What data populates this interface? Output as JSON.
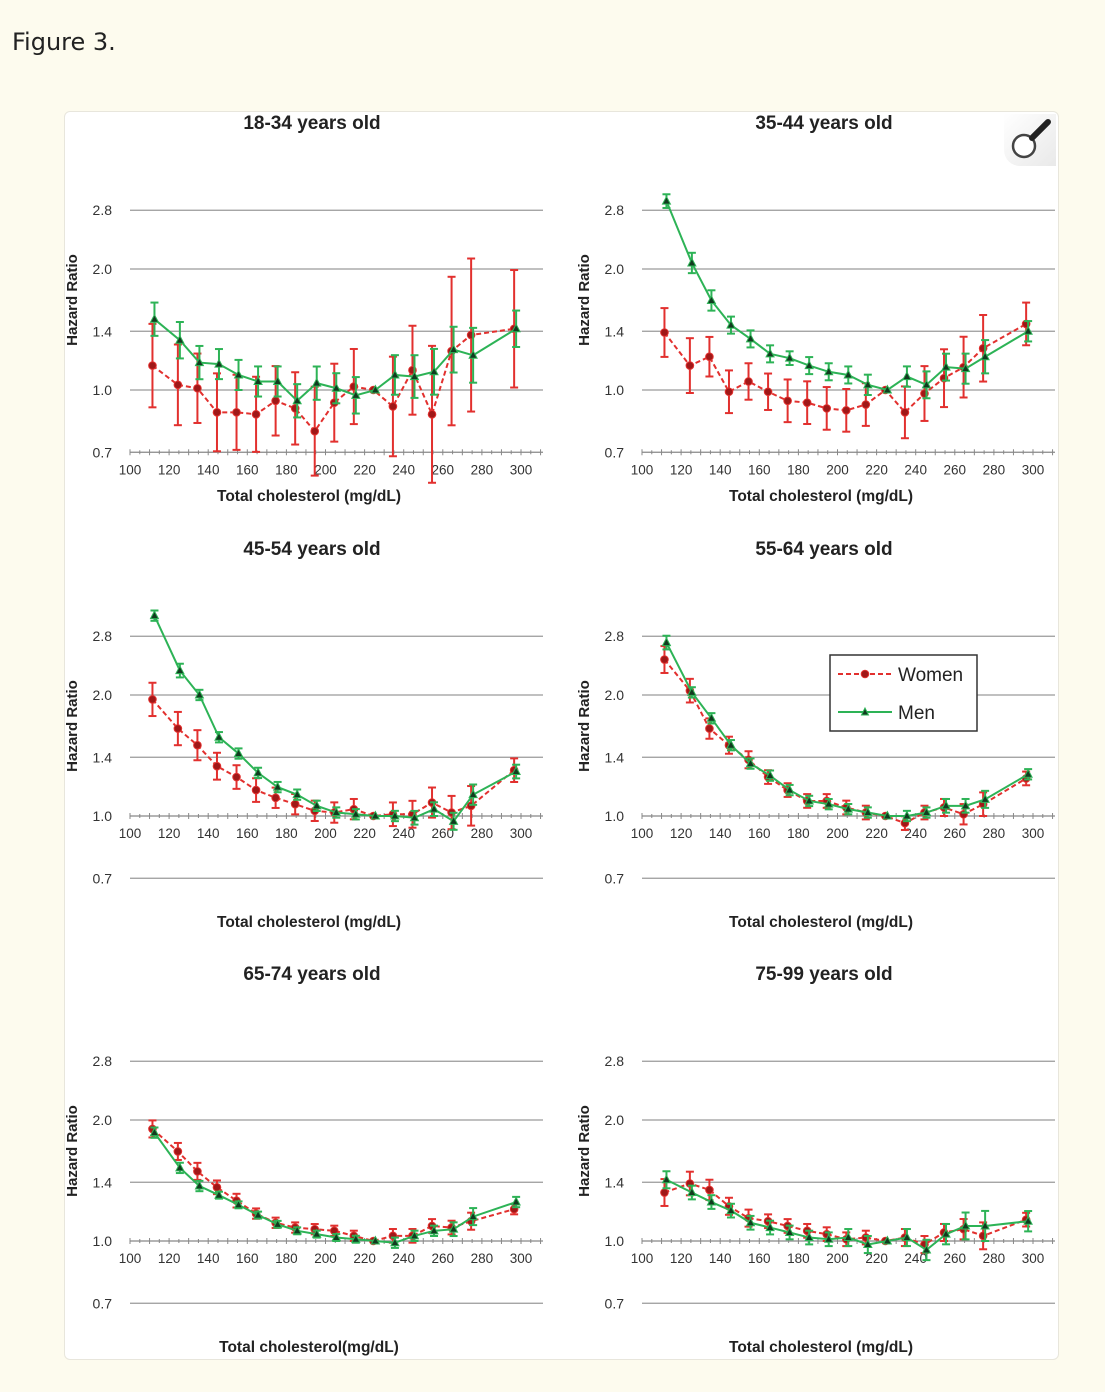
{
  "page": {
    "figure_title": "Figure 3."
  },
  "colors": {
    "women": "#e2302e",
    "women_marker": "#a01818",
    "men": "#2db356",
    "men_marker": "#123b1f",
    "grid": "#9a9a9a"
  },
  "icons": {
    "magnifier": "magnifier-icon"
  },
  "chart_data": [
    {
      "type": "line",
      "title": "18-34 years old",
      "xlabel": "Total cholesterol (mg/dL)",
      "ylabel": "Hazard Ratio",
      "yscale": "log",
      "ylim": [
        0.7,
        2.8
      ],
      "yticks": [
        "0.7",
        "1.0",
        "1.4",
        "2.0",
        "2.8"
      ],
      "xlim": [
        100,
        310
      ],
      "xticks": [
        "100",
        "120",
        "140",
        "160",
        "180",
        "200",
        "220",
        "240",
        "260",
        "280",
        "300"
      ],
      "axis_at": 0.7,
      "grid": true,
      "legend": null,
      "x": [
        112,
        125,
        135,
        145,
        155,
        165,
        175,
        185,
        195,
        205,
        215,
        225,
        235,
        245,
        255,
        265,
        275,
        297
      ],
      "series": [
        {
          "name": "Women",
          "values": [
            1.15,
            1.03,
            1.01,
            0.88,
            0.88,
            0.87,
            0.94,
            0.9,
            0.79,
            0.93,
            1.02,
            1.0,
            0.91,
            1.12,
            0.87,
            1.25,
            1.37,
            1.42
          ],
          "ci_ratio": [
            1.27,
            1.26,
            1.22,
            1.25,
            1.24,
            1.24,
            1.22,
            1.23,
            1.29,
            1.25,
            1.24,
            1,
            1.33,
            1.29,
            1.48,
            1.53,
            1.55,
            1.4
          ]
        },
        {
          "name": "Men",
          "values": [
            1.5,
            1.33,
            1.17,
            1.16,
            1.09,
            1.05,
            1.05,
            0.94,
            1.04,
            1.01,
            0.97,
            1.0,
            1.09,
            1.08,
            1.11,
            1.26,
            1.22,
            1.42
          ],
          "ci_ratio": [
            1.1,
            1.11,
            1.1,
            1.09,
            1.09,
            1.09,
            1.09,
            1.1,
            1.1,
            1.09,
            1.11,
            1,
            1.12,
            1.13,
            1.14,
            1.14,
            1.17,
            1.11
          ]
        }
      ]
    },
    {
      "type": "line",
      "title": "35-44 years old",
      "xlabel": "Total cholesterol (mg/dL)",
      "ylabel": "Hazard Ratio",
      "yscale": "log",
      "ylim": [
        0.7,
        2.8
      ],
      "yticks": [
        "0.7",
        "1.0",
        "1.4",
        "2.0",
        "2.8"
      ],
      "xlim": [
        100,
        310
      ],
      "xticks": [
        "100",
        "120",
        "140",
        "160",
        "180",
        "200",
        "220",
        "240",
        "260",
        "280",
        "300"
      ],
      "axis_at": 0.7,
      "grid": true,
      "legend": null,
      "x": [
        112,
        125,
        135,
        145,
        155,
        165,
        175,
        185,
        195,
        205,
        215,
        225,
        235,
        245,
        255,
        265,
        275,
        297
      ],
      "series": [
        {
          "name": "Women",
          "values": [
            1.39,
            1.15,
            1.21,
            0.99,
            1.05,
            0.99,
            0.94,
            0.93,
            0.9,
            0.89,
            0.92,
            1.0,
            0.88,
            0.98,
            1.07,
            1.14,
            1.27,
            1.46
          ],
          "ci_ratio": [
            1.15,
            1.17,
            1.12,
            1.13,
            1.11,
            1.11,
            1.13,
            1.13,
            1.13,
            1.13,
            1.13,
            1,
            1.16,
            1.17,
            1.18,
            1.19,
            1.21,
            1.13
          ]
        },
        {
          "name": "Men",
          "values": [
            2.95,
            2.07,
            1.67,
            1.45,
            1.34,
            1.23,
            1.2,
            1.15,
            1.11,
            1.09,
            1.03,
            1.0,
            1.08,
            1.03,
            1.14,
            1.13,
            1.21,
            1.4
          ],
          "ci_ratio": [
            1.04,
            1.06,
            1.06,
            1.05,
            1.05,
            1.05,
            1.04,
            1.05,
            1.05,
            1.05,
            1.06,
            1,
            1.06,
            1.08,
            1.08,
            1.09,
            1.1,
            1.06
          ]
        }
      ]
    },
    {
      "type": "line",
      "title": "45-54 years old",
      "xlabel": "Total cholesterol (mg/dL)",
      "ylabel": "Hazard Ratio",
      "yscale": "log",
      "ylim": [
        0.7,
        2.8
      ],
      "yticks": [
        "0.7",
        "1.0",
        "1.4",
        "2.0",
        "2.8"
      ],
      "xlim": [
        100,
        310
      ],
      "xticks": [
        "100",
        "120",
        "140",
        "160",
        "180",
        "200",
        "220",
        "240",
        "260",
        "280",
        "300"
      ],
      "axis_at": 1.0,
      "grid": true,
      "legend": null,
      "x": [
        112,
        125,
        135,
        145,
        155,
        165,
        175,
        185,
        195,
        205,
        215,
        225,
        235,
        245,
        255,
        265,
        275,
        297
      ],
      "series": [
        {
          "name": "Women",
          "values": [
            1.95,
            1.65,
            1.5,
            1.33,
            1.25,
            1.16,
            1.11,
            1.07,
            1.03,
            1.02,
            1.04,
            1.0,
            1.01,
            1.01,
            1.08,
            1.02,
            1.06,
            1.3
          ],
          "ci_ratio": [
            1.1,
            1.1,
            1.09,
            1.08,
            1.07,
            1.07,
            1.06,
            1.06,
            1.06,
            1.06,
            1.06,
            1,
            1.07,
            1.08,
            1.09,
            1.1,
            1.12,
            1.07
          ]
        },
        {
          "name": "Men",
          "values": [
            3.15,
            2.3,
            2.0,
            1.57,
            1.43,
            1.28,
            1.18,
            1.13,
            1.06,
            1.02,
            1.01,
            1.0,
            1.0,
            0.99,
            1.04,
            0.97,
            1.13,
            1.29
          ],
          "ci_ratio": [
            1.03,
            1.04,
            1.03,
            1.03,
            1.03,
            1.03,
            1.03,
            1.03,
            1.03,
            1.03,
            1.03,
            1,
            1.03,
            1.04,
            1.04,
            1.05,
            1.06,
            1.04
          ]
        }
      ]
    },
    {
      "type": "line",
      "title": "55-64 years old",
      "xlabel": "Total cholesterol (mg/dL)",
      "ylabel": "Hazard Ratio",
      "yscale": "log",
      "ylim": [
        0.7,
        2.8
      ],
      "yticks": [
        "0.7",
        "1.0",
        "1.4",
        "2.0",
        "2.8"
      ],
      "xlim": [
        100,
        310
      ],
      "xticks": [
        "100",
        "120",
        "140",
        "160",
        "180",
        "200",
        "220",
        "240",
        "260",
        "280",
        "300"
      ],
      "axis_at": 1.0,
      "grid": true,
      "legend": "top-right",
      "x": [
        112,
        125,
        135,
        145,
        155,
        165,
        175,
        185,
        195,
        205,
        215,
        225,
        235,
        245,
        255,
        265,
        275,
        297
      ],
      "series": [
        {
          "name": "Women",
          "values": [
            2.45,
            2.05,
            1.65,
            1.5,
            1.38,
            1.25,
            1.16,
            1.09,
            1.09,
            1.05,
            1.02,
            1.0,
            0.96,
            1.02,
            1.05,
            1.01,
            1.07,
            1.24
          ],
          "ci_ratio": [
            1.08,
            1.07,
            1.06,
            1.05,
            1.05,
            1.04,
            1.04,
            1.04,
            1.04,
            1.04,
            1.04,
            1,
            1.04,
            1.04,
            1.05,
            1.06,
            1.07,
            1.04
          ]
        },
        {
          "name": "Men",
          "values": [
            2.7,
            2.03,
            1.75,
            1.5,
            1.35,
            1.26,
            1.16,
            1.09,
            1.07,
            1.04,
            1.02,
            1.0,
            1.0,
            1.02,
            1.06,
            1.06,
            1.1,
            1.27
          ],
          "ci_ratio": [
            1.04,
            1.03,
            1.03,
            1.03,
            1.03,
            1.03,
            1.03,
            1.03,
            1.03,
            1.03,
            1.03,
            1,
            1.03,
            1.03,
            1.04,
            1.04,
            1.05,
            1.03
          ]
        }
      ]
    },
    {
      "type": "line",
      "title": "65-74 years old",
      "xlabel": "Total cholesterol(mg/dL)",
      "ylabel": "Hazard Ratio",
      "yscale": "log",
      "ylim": [
        0.7,
        2.8
      ],
      "yticks": [
        "0.7",
        "1.0",
        "1.4",
        "2.0",
        "2.8"
      ],
      "xlim": [
        100,
        310
      ],
      "xticks": [
        "100",
        "120",
        "140",
        "160",
        "180",
        "200",
        "220",
        "240",
        "260",
        "280",
        "300"
      ],
      "axis_at": 1.0,
      "grid": true,
      "legend": null,
      "x": [
        112,
        125,
        135,
        145,
        155,
        165,
        175,
        185,
        195,
        205,
        215,
        225,
        235,
        245,
        255,
        265,
        275,
        297
      ],
      "series": [
        {
          "name": "Women",
          "values": [
            1.9,
            1.67,
            1.49,
            1.36,
            1.26,
            1.17,
            1.11,
            1.08,
            1.07,
            1.06,
            1.03,
            1.0,
            1.03,
            1.03,
            1.09,
            1.08,
            1.12,
            1.2
          ],
          "ci_ratio": [
            1.05,
            1.05,
            1.05,
            1.04,
            1.04,
            1.03,
            1.03,
            1.03,
            1.03,
            1.03,
            1.03,
            1,
            1.04,
            1.04,
            1.04,
            1.04,
            1.05,
            1.03
          ]
        },
        {
          "name": "Men",
          "values": [
            1.86,
            1.52,
            1.37,
            1.3,
            1.23,
            1.16,
            1.1,
            1.06,
            1.04,
            1.02,
            1.01,
            1.0,
            0.99,
            1.03,
            1.06,
            1.07,
            1.15,
            1.25
          ],
          "ci_ratio": [
            1.03,
            1.03,
            1.03,
            1.02,
            1.02,
            1.02,
            1.02,
            1.02,
            1.02,
            1.02,
            1.02,
            1,
            1.03,
            1.03,
            1.03,
            1.04,
            1.05,
            1.03
          ]
        }
      ]
    },
    {
      "type": "line",
      "title": "75-99 years old",
      "xlabel": "Total cholesterol (mg/dL)",
      "ylabel": "Hazard Ratio",
      "yscale": "log",
      "ylim": [
        0.7,
        2.8
      ],
      "yticks": [
        "0.7",
        "1.0",
        "1.4",
        "2.0",
        "2.8"
      ],
      "xlim": [
        100,
        310
      ],
      "xticks": [
        "100",
        "120",
        "140",
        "160",
        "180",
        "200",
        "220",
        "240",
        "260",
        "280",
        "300"
      ],
      "axis_at": 1.0,
      "grid": true,
      "legend": null,
      "x": [
        112,
        125,
        135,
        145,
        155,
        165,
        175,
        185,
        195,
        205,
        215,
        225,
        235,
        245,
        255,
        265,
        275,
        297
      ],
      "series": [
        {
          "name": "Women",
          "values": [
            1.32,
            1.39,
            1.34,
            1.22,
            1.14,
            1.12,
            1.09,
            1.06,
            1.04,
            1.01,
            1.02,
            1.0,
            1.02,
            0.98,
            1.05,
            1.07,
            1.03,
            1.13
          ],
          "ci_ratio": [
            1.08,
            1.07,
            1.06,
            1.05,
            1.05,
            1.04,
            1.04,
            1.04,
            1.04,
            1.04,
            1.04,
            1,
            1.05,
            1.05,
            1.05,
            1.06,
            1.08,
            1.04
          ]
        },
        {
          "name": "Men",
          "values": [
            1.42,
            1.32,
            1.25,
            1.19,
            1.11,
            1.08,
            1.05,
            1.02,
            1.01,
            1.02,
            0.98,
            1.0,
            1.02,
            0.95,
            1.04,
            1.09,
            1.09,
            1.12
          ],
          "ci_ratio": [
            1.05,
            1.04,
            1.04,
            1.04,
            1.04,
            1.04,
            1.04,
            1.04,
            1.04,
            1.05,
            1.05,
            1,
            1.05,
            1.06,
            1.06,
            1.08,
            1.09,
            1.06
          ]
        }
      ]
    }
  ]
}
